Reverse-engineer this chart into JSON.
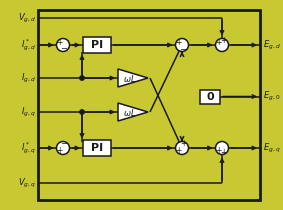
{
  "bg_color": "#c8c832",
  "border_color": "#1a1a1a",
  "line_color": "#1a1a1a",
  "white": "#ffffff",
  "figsize": [
    2.83,
    2.1
  ],
  "dpi": 100,
  "bg_yellow": "#c8c832"
}
